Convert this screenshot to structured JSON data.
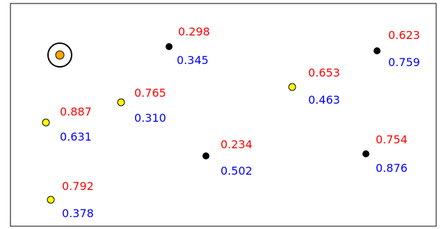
{
  "colors": {
    "red_value": "#ff0000",
    "blue_value": "#0000ff",
    "black_dot": "#000000",
    "yellow_dot": "#ffff00",
    "orange_dot": "#ffa500",
    "frame": "#000000"
  },
  "points": [
    {
      "id": "p1",
      "marker": "orange-target",
      "red": "",
      "blue": ""
    },
    {
      "id": "p2",
      "marker": "yellow",
      "red": "0.887",
      "blue": "0.631"
    },
    {
      "id": "p3",
      "marker": "yellow",
      "red": "0.765",
      "blue": "0.310"
    },
    {
      "id": "p4",
      "marker": "black",
      "red": "0.298",
      "blue": "0.345"
    },
    {
      "id": "p5",
      "marker": "black",
      "red": "0.234",
      "blue": "0.502"
    },
    {
      "id": "p6",
      "marker": "yellow",
      "red": "0.792",
      "blue": "0.378"
    },
    {
      "id": "p7",
      "marker": "yellow",
      "red": "0.653",
      "blue": "0.463"
    },
    {
      "id": "p8",
      "marker": "black",
      "red": "0.623",
      "blue": "0.759"
    },
    {
      "id": "p9",
      "marker": "black",
      "red": "0.754",
      "blue": "0.876"
    }
  ]
}
